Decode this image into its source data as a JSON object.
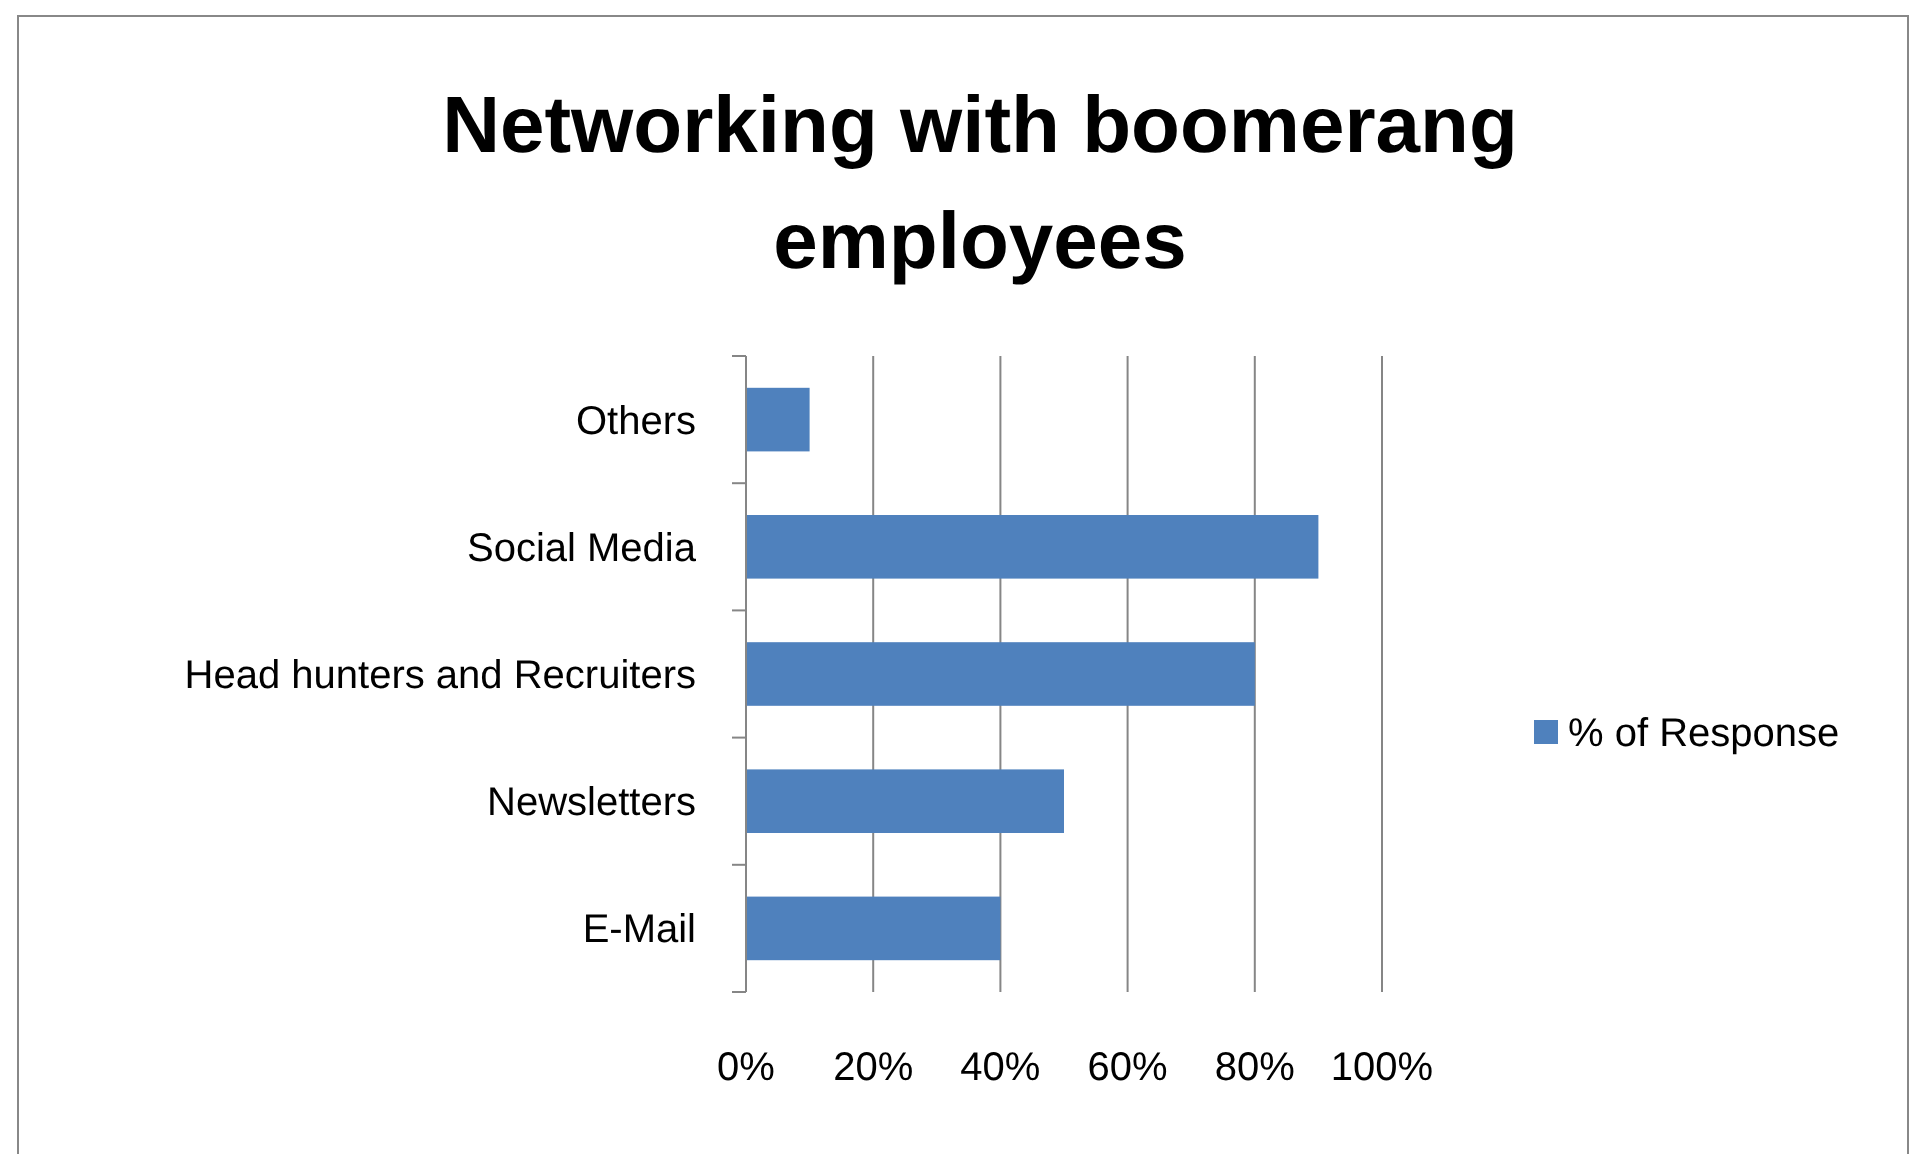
{
  "chart_data": {
    "type": "bar",
    "orientation": "horizontal",
    "title": "Networking with boomerang employees",
    "categories": [
      "Others",
      "Social Media",
      "Head hunters and Recruiters",
      "Newsletters",
      "E-Mail"
    ],
    "series": [
      {
        "name": "% of Response",
        "color": "#4f81bd",
        "values": [
          10,
          90,
          80,
          50,
          40
        ]
      }
    ],
    "xlim": [
      0,
      100
    ],
    "xticks": [
      {
        "value": 0,
        "label": "0%"
      },
      {
        "value": 20,
        "label": "20%"
      },
      {
        "value": 40,
        "label": "40%"
      },
      {
        "value": 60,
        "label": "60%"
      },
      {
        "value": 80,
        "label": "80%"
      },
      {
        "value": 100,
        "label": "100%"
      }
    ],
    "grid": "x",
    "legend": "right"
  }
}
